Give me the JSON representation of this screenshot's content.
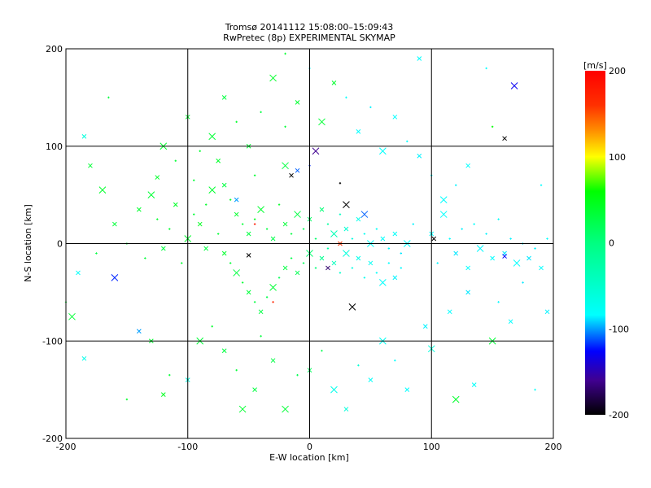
{
  "chart_data": {
    "type": "scatter",
    "title": "Tromsø 20141112 15:08:00–15:09:43",
    "subtitle": "RwPretec (8p) EXPERIMENTAL SKYMAP",
    "xlabel": "E-W location [km]",
    "ylabel": "N-S location [km]",
    "xlim": [
      -200,
      200
    ],
    "ylim": [
      -200,
      200
    ],
    "xticks": [
      -200,
      -100,
      0,
      100,
      200
    ],
    "yticks": [
      -200,
      -100,
      0,
      100,
      200
    ],
    "xtick_labels": [
      "-200",
      "-100",
      "0",
      "100",
      "200"
    ],
    "ytick_labels": [
      "-200",
      "-100",
      "0",
      "100",
      "200"
    ],
    "grid": true,
    "colorbar": {
      "label": "[m/s]",
      "range": [
        -200,
        200
      ],
      "ticks": [
        200,
        100,
        0,
        -100,
        -200
      ],
      "tick_labels": [
        "200",
        "100",
        "0",
        "-100",
        "-200"
      ],
      "stops": [
        {
          "v": 200,
          "color": "#ff0000"
        },
        {
          "v": 160,
          "color": "#ff3000"
        },
        {
          "v": 130,
          "color": "#ff9000"
        },
        {
          "v": 100,
          "color": "#ffff00"
        },
        {
          "v": 60,
          "color": "#00ff00"
        },
        {
          "v": 0,
          "color": "#00ff80"
        },
        {
          "v": -84,
          "color": "#00ffff"
        },
        {
          "v": -126,
          "color": "#0000ff"
        },
        {
          "v": -160,
          "color": "#400090"
        },
        {
          "v": -200,
          "color": "#000000"
        }
      ]
    },
    "point_fields": [
      "x_km",
      "y_km",
      "velocity_ms",
      "marker"
    ],
    "markers": [
      "dot",
      "small-x",
      "large-x"
    ],
    "points": [
      [
        -60,
        30,
        40,
        1
      ],
      [
        -55,
        20,
        35,
        0
      ],
      [
        -50,
        10,
        30,
        1
      ],
      [
        -45,
        25,
        45,
        0
      ],
      [
        -40,
        35,
        38,
        2
      ],
      [
        -35,
        15,
        30,
        0
      ],
      [
        -30,
        5,
        25,
        1
      ],
      [
        -25,
        40,
        42,
        0
      ],
      [
        -20,
        20,
        35,
        1
      ],
      [
        -15,
        10,
        30,
        0
      ],
      [
        -10,
        30,
        28,
        2
      ],
      [
        -5,
        15,
        20,
        0
      ],
      [
        0,
        25,
        15,
        1
      ],
      [
        5,
        5,
        10,
        0
      ],
      [
        10,
        35,
        5,
        1
      ],
      [
        15,
        20,
        -20,
        0
      ],
      [
        20,
        10,
        -35,
        2
      ],
      [
        25,
        30,
        -45,
        0
      ],
      [
        30,
        15,
        -55,
        1
      ],
      [
        35,
        5,
        -65,
        0
      ],
      [
        40,
        25,
        -70,
        1
      ],
      [
        45,
        10,
        -75,
        0
      ],
      [
        50,
        0,
        -80,
        2
      ],
      [
        55,
        15,
        -78,
        0
      ],
      [
        60,
        5,
        -82,
        1
      ],
      [
        65,
        -5,
        -85,
        0
      ],
      [
        70,
        10,
        -80,
        1
      ],
      [
        75,
        -10,
        -88,
        0
      ],
      [
        80,
        0,
        -84,
        2
      ],
      [
        85,
        20,
        -86,
        0
      ],
      [
        -70,
        -10,
        40,
        1
      ],
      [
        -65,
        -20,
        35,
        0
      ],
      [
        -60,
        -30,
        30,
        2
      ],
      [
        -55,
        -40,
        38,
        0
      ],
      [
        -50,
        -50,
        33,
        1
      ],
      [
        -45,
        -60,
        30,
        0
      ],
      [
        -40,
        -70,
        28,
        1
      ],
      [
        -35,
        -55,
        25,
        0
      ],
      [
        -30,
        -45,
        35,
        2
      ],
      [
        -25,
        -35,
        20,
        0
      ],
      [
        -20,
        -25,
        30,
        1
      ],
      [
        -15,
        -15,
        25,
        0
      ],
      [
        -10,
        -30,
        22,
        1
      ],
      [
        -5,
        -20,
        18,
        0
      ],
      [
        0,
        -10,
        10,
        2
      ],
      [
        5,
        -25,
        5,
        0
      ],
      [
        10,
        -15,
        -10,
        1
      ],
      [
        15,
        -5,
        -25,
        0
      ],
      [
        20,
        -20,
        -40,
        1
      ],
      [
        25,
        -30,
        -50,
        0
      ],
      [
        30,
        -10,
        -60,
        2
      ],
      [
        35,
        -25,
        -65,
        0
      ],
      [
        40,
        -15,
        -70,
        1
      ],
      [
        45,
        -35,
        -72,
        0
      ],
      [
        50,
        -20,
        -76,
        1
      ],
      [
        55,
        -30,
        -80,
        0
      ],
      [
        60,
        -40,
        -82,
        2
      ],
      [
        65,
        -20,
        -84,
        0
      ],
      [
        70,
        -35,
        -86,
        1
      ],
      [
        75,
        -25,
        -85,
        0
      ],
      [
        -90,
        20,
        45,
        1
      ],
      [
        -85,
        40,
        40,
        0
      ],
      [
        -80,
        55,
        38,
        2
      ],
      [
        -75,
        10,
        35,
        0
      ],
      [
        -70,
        60,
        30,
        1
      ],
      [
        -65,
        45,
        42,
        0
      ],
      [
        -85,
        -5,
        30,
        1
      ],
      [
        -95,
        30,
        35,
        0
      ],
      [
        -100,
        5,
        40,
        2
      ],
      [
        -105,
        -20,
        38,
        0
      ],
      [
        -110,
        40,
        42,
        1
      ],
      [
        -115,
        15,
        36,
        0
      ],
      [
        -120,
        -5,
        30,
        1
      ],
      [
        -125,
        25,
        40,
        0
      ],
      [
        -130,
        50,
        35,
        2
      ],
      [
        -135,
        -15,
        33,
        0
      ],
      [
        -140,
        35,
        38,
        1
      ],
      [
        -150,
        0,
        36,
        0
      ],
      [
        -160,
        20,
        34,
        1
      ],
      [
        -170,
        55,
        40,
        2
      ],
      [
        -180,
        80,
        35,
        1
      ],
      [
        -185,
        110,
        -60,
        1
      ],
      [
        -175,
        -10,
        30,
        0
      ],
      [
        -190,
        -30,
        -80,
        1
      ],
      [
        -195,
        -75,
        35,
        2
      ],
      [
        -185,
        -118,
        -70,
        1
      ],
      [
        -160,
        -35,
        -120,
        2
      ],
      [
        -140,
        -90,
        -100,
        1
      ],
      [
        -120,
        -155,
        45,
        1
      ],
      [
        -115,
        -135,
        36,
        0
      ],
      [
        -100,
        -140,
        -60,
        1
      ],
      [
        -90,
        -100,
        34,
        2
      ],
      [
        -80,
        -85,
        40,
        0
      ],
      [
        -70,
        -110,
        30,
        1
      ],
      [
        -60,
        -130,
        35,
        0
      ],
      [
        -55,
        -170,
        38,
        2
      ],
      [
        -45,
        -150,
        30,
        1
      ],
      [
        -40,
        -95,
        32,
        0
      ],
      [
        -30,
        -120,
        28,
        1
      ],
      [
        -20,
        -170,
        35,
        2
      ],
      [
        -10,
        -135,
        22,
        0
      ],
      [
        0,
        -130,
        18,
        1
      ],
      [
        10,
        -110,
        20,
        0
      ],
      [
        20,
        -150,
        -70,
        2
      ],
      [
        30,
        -170,
        -60,
        1
      ],
      [
        40,
        -125,
        -55,
        0
      ],
      [
        50,
        -140,
        -80,
        1
      ],
      [
        60,
        -100,
        -75,
        2
      ],
      [
        70,
        -120,
        -82,
        0
      ],
      [
        80,
        -150,
        -84,
        1
      ],
      [
        95,
        -85,
        -86,
        1
      ],
      [
        100,
        -108,
        -60,
        2
      ],
      [
        115,
        -70,
        -84,
        1
      ],
      [
        120,
        -160,
        40,
        2
      ],
      [
        130,
        -50,
        -88,
        1
      ],
      [
        135,
        -145,
        -80,
        1
      ],
      [
        150,
        -100,
        35,
        2
      ],
      [
        155,
        -60,
        -85,
        0
      ],
      [
        165,
        -80,
        -84,
        1
      ],
      [
        175,
        -40,
        -88,
        0
      ],
      [
        100,
        10,
        -84,
        1
      ],
      [
        105,
        -20,
        -86,
        0
      ],
      [
        110,
        30,
        -82,
        2
      ],
      [
        115,
        5,
        -84,
        0
      ],
      [
        120,
        -10,
        -88,
        1
      ],
      [
        125,
        15,
        -86,
        0
      ],
      [
        130,
        -25,
        -84,
        1
      ],
      [
        135,
        20,
        -82,
        0
      ],
      [
        140,
        -5,
        -85,
        2
      ],
      [
        145,
        10,
        -86,
        0
      ],
      [
        150,
        -15,
        -84,
        1
      ],
      [
        155,
        25,
        -80,
        0
      ],
      [
        160,
        -10,
        -88,
        1
      ],
      [
        165,
        5,
        -86,
        0
      ],
      [
        170,
        -20,
        -84,
        2
      ],
      [
        175,
        0,
        -90,
        0
      ],
      [
        180,
        -15,
        -88,
        1
      ],
      [
        185,
        -5,
        -86,
        0
      ],
      [
        190,
        -25,
        -84,
        1
      ],
      [
        195,
        5,
        -82,
        0
      ],
      [
        160,
        -13,
        -125,
        1
      ],
      [
        168,
        162,
        -130,
        2
      ],
      [
        160,
        108,
        -200,
        1
      ],
      [
        150,
        120,
        60,
        0
      ],
      [
        130,
        80,
        -84,
        1
      ],
      [
        120,
        60,
        -86,
        0
      ],
      [
        110,
        45,
        -84,
        2
      ],
      [
        100,
        70,
        -82,
        0
      ],
      [
        90,
        90,
        -86,
        1
      ],
      [
        80,
        105,
        -84,
        0
      ],
      [
        70,
        130,
        -84,
        1
      ],
      [
        60,
        95,
        -82,
        2
      ],
      [
        50,
        140,
        -86,
        0
      ],
      [
        40,
        115,
        -84,
        1
      ],
      [
        30,
        150,
        -82,
        0
      ],
      [
        20,
        165,
        40,
        1
      ],
      [
        10,
        125,
        35,
        2
      ],
      [
        0,
        180,
        -84,
        0
      ],
      [
        -10,
        145,
        38,
        1
      ],
      [
        -20,
        120,
        35,
        0
      ],
      [
        -30,
        170,
        40,
        2
      ],
      [
        -40,
        135,
        30,
        0
      ],
      [
        -50,
        100,
        35,
        1
      ],
      [
        -60,
        125,
        40,
        0
      ],
      [
        -70,
        150,
        30,
        1
      ],
      [
        -80,
        110,
        35,
        2
      ],
      [
        -90,
        95,
        38,
        0
      ],
      [
        -100,
        130,
        40,
        1
      ],
      [
        -110,
        85,
        36,
        0
      ],
      [
        -120,
        100,
        38,
        2
      ],
      [
        -125,
        68,
        40,
        1
      ],
      [
        -95,
        65,
        35,
        0
      ],
      [
        -75,
        85,
        40,
        1
      ],
      [
        -45,
        70,
        38,
        0
      ],
      [
        -20,
        80,
        30,
        2
      ],
      [
        5,
        95,
        -160,
        2
      ],
      [
        0,
        80,
        -120,
        0
      ],
      [
        -10,
        75,
        -110,
        1
      ],
      [
        -15,
        70,
        -200,
        1
      ],
      [
        25,
        62,
        -200,
        0
      ],
      [
        30,
        40,
        -200,
        2
      ],
      [
        35,
        -65,
        -200,
        2
      ],
      [
        -50,
        -12,
        -200,
        1
      ],
      [
        15,
        -25,
        -170,
        1
      ],
      [
        102,
        5,
        -200,
        1
      ],
      [
        25,
        0,
        160,
        1
      ],
      [
        -45,
        20,
        180,
        0
      ],
      [
        -60,
        45,
        -100,
        1
      ],
      [
        45,
        30,
        -110,
        2
      ],
      [
        -30,
        -60,
        170,
        0
      ],
      [
        -165,
        150,
        30,
        0
      ],
      [
        -150,
        -160,
        40,
        0
      ],
      [
        -130,
        -100,
        38,
        1
      ],
      [
        -200,
        -60,
        35,
        0
      ],
      [
        190,
        60,
        -84,
        0
      ],
      [
        195,
        -70,
        -86,
        1
      ],
      [
        185,
        -150,
        -80,
        0
      ],
      [
        145,
        180,
        -84,
        0
      ],
      [
        90,
        190,
        -84,
        1
      ],
      [
        -20,
        195,
        38,
        0
      ]
    ]
  }
}
